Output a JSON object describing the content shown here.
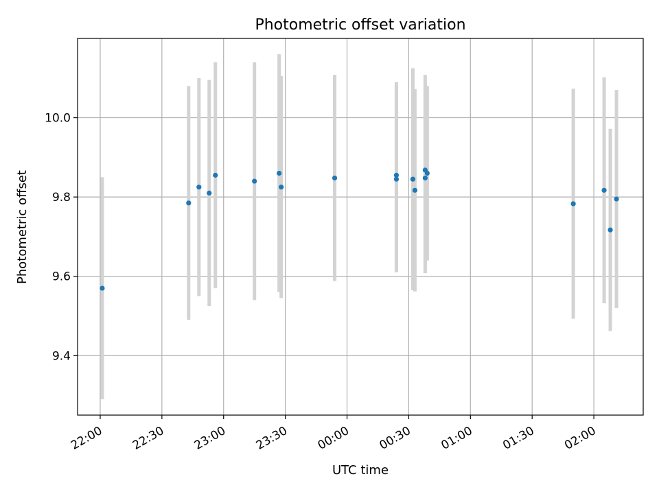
{
  "chart_data": {
    "type": "scatter",
    "title": "Photometric offset variation",
    "xlabel": "UTC time",
    "ylabel": "Photometric offset",
    "grid": true,
    "legend": "none",
    "x_tick_labels": [
      "22:00",
      "22:30",
      "23:00",
      "23:30",
      "00:00",
      "00:30",
      "01:00",
      "01:30",
      "02:00"
    ],
    "y_tick_labels": [
      "9.4",
      "9.6",
      "9.8",
      "10.0"
    ],
    "x_ticks_minutes_since_2200": [
      0,
      30,
      60,
      90,
      120,
      150,
      180,
      210,
      240
    ],
    "y_ticks": [
      9.4,
      9.6,
      9.8,
      10.0
    ],
    "xlim_minutes_since_2200": [
      -11,
      264
    ],
    "ylim": [
      9.25,
      10.2
    ],
    "point_color": "#1f77b4",
    "errorbar_color": "#d3d3d3",
    "grid_color": "#b0b0b0",
    "points": [
      {
        "x": "22:01",
        "y": 9.57,
        "yerr": 0.28
      },
      {
        "x": "22:43",
        "y": 9.785,
        "yerr": 0.295
      },
      {
        "x": "22:48",
        "y": 9.825,
        "yerr": 0.275
      },
      {
        "x": "22:53",
        "y": 9.81,
        "yerr": 0.285
      },
      {
        "x": "22:56",
        "y": 9.855,
        "yerr": 0.285
      },
      {
        "x": "23:15",
        "y": 9.84,
        "yerr": 0.3
      },
      {
        "x": "23:27",
        "y": 9.86,
        "yerr": 0.3
      },
      {
        "x": "23:28",
        "y": 9.825,
        "yerr": 0.28
      },
      {
        "x": "23:54",
        "y": 9.848,
        "yerr": 0.26
      },
      {
        "x": "00:24",
        "y": 9.855,
        "yerr": 0.235
      },
      {
        "x": "00:24",
        "y": 9.845,
        "yerr": 0.235
      },
      {
        "x": "00:32",
        "y": 9.845,
        "yerr": 0.28
      },
      {
        "x": "00:33",
        "y": 9.817,
        "yerr": 0.255
      },
      {
        "x": "00:38",
        "y": 9.848,
        "yerr": 0.24
      },
      {
        "x": "00:38",
        "y": 9.868,
        "yerr": 0.24
      },
      {
        "x": "00:39",
        "y": 9.86,
        "yerr": 0.22
      },
      {
        "x": "01:50",
        "y": 9.783,
        "yerr": 0.29
      },
      {
        "x": "02:05",
        "y": 9.817,
        "yerr": 0.285
      },
      {
        "x": "02:08",
        "y": 9.717,
        "yerr": 0.255
      },
      {
        "x": "02:11",
        "y": 9.795,
        "yerr": 0.275
      }
    ]
  }
}
